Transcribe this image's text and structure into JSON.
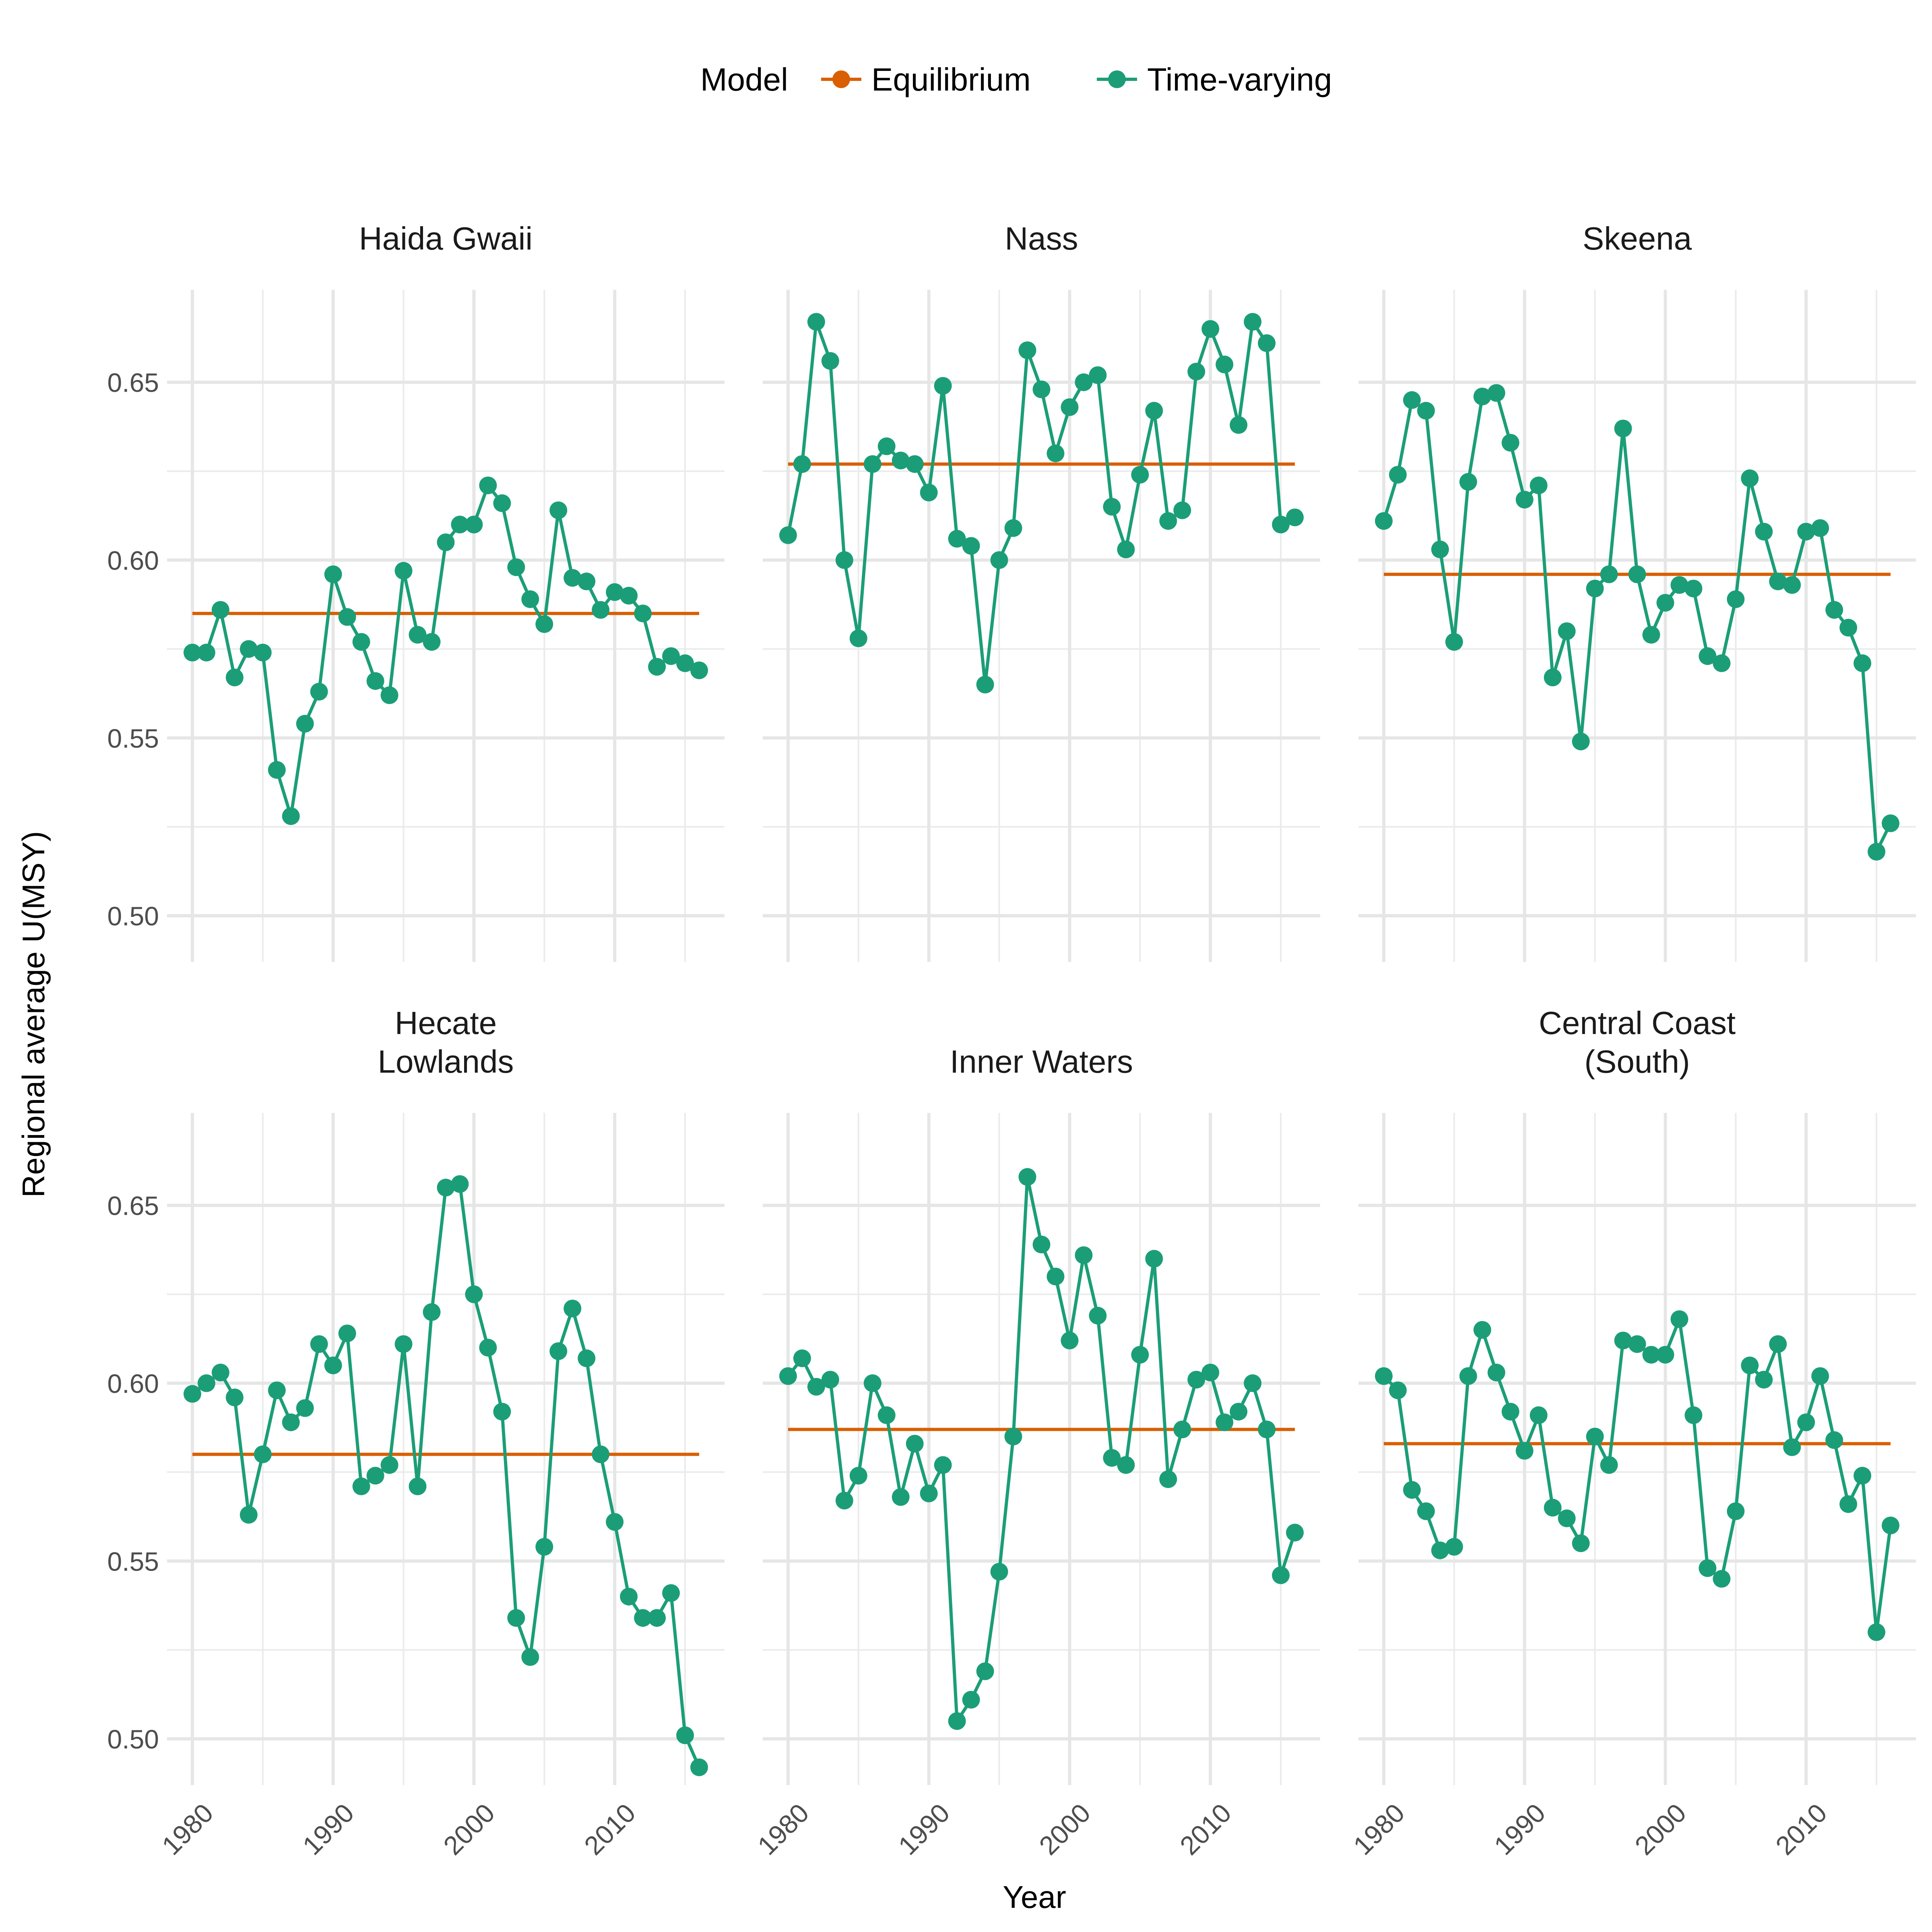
{
  "chart_data": {
    "type": "line",
    "xlabel": "Year",
    "ylabel": "Regional average U(MSY)",
    "ylim": [
      0.487,
      0.676
    ],
    "xlim": [
      1978.2,
      2017.8
    ],
    "x_ticks": [
      1980,
      1990,
      2000,
      2010
    ],
    "x_tick_labels": [
      "1980",
      "1990",
      "2000",
      "2010"
    ],
    "y_ticks": [
      0.5,
      0.55,
      0.6,
      0.65
    ],
    "y_tick_labels": [
      "0.50",
      "0.55",
      "0.60",
      "0.65"
    ],
    "grid": true,
    "legend": {
      "placement": "top",
      "title": "Model",
      "entries": [
        {
          "name": "Equilibrium",
          "color": "#D95F02"
        },
        {
          "name": "Time-varying",
          "color": "#1B9E77"
        }
      ]
    },
    "years": [
      1980,
      1981,
      1982,
      1983,
      1984,
      1985,
      1986,
      1987,
      1988,
      1989,
      1990,
      1991,
      1992,
      1993,
      1994,
      1995,
      1996,
      1997,
      1998,
      1999,
      2000,
      2001,
      2002,
      2003,
      2004,
      2005,
      2006,
      2007,
      2008,
      2009,
      2010,
      2011,
      2012,
      2013,
      2014,
      2015,
      2016
    ],
    "panels": [
      {
        "title_lines": [
          "Haida Gwaii"
        ],
        "equilibrium": 0.585,
        "time_varying": [
          0.574,
          0.574,
          0.586,
          0.567,
          0.575,
          0.574,
          0.541,
          0.528,
          0.554,
          0.563,
          0.596,
          0.584,
          0.577,
          0.566,
          0.562,
          0.597,
          0.579,
          0.577,
          0.605,
          0.61,
          0.61,
          0.621,
          0.616,
          0.598,
          0.589,
          0.582,
          0.614,
          0.595,
          0.594,
          0.586,
          0.591,
          0.59,
          0.585,
          0.57,
          0.573,
          0.571,
          0.569
        ]
      },
      {
        "title_lines": [
          "Nass"
        ],
        "equilibrium": 0.627,
        "time_varying": [
          0.607,
          0.627,
          0.667,
          0.656,
          0.6,
          0.578,
          0.627,
          0.632,
          0.628,
          0.627,
          0.619,
          0.649,
          0.606,
          0.604,
          0.565,
          0.6,
          0.609,
          0.659,
          0.648,
          0.63,
          0.643,
          0.65,
          0.652,
          0.615,
          0.603,
          0.624,
          0.642,
          0.611,
          0.614,
          0.653,
          0.665,
          0.655,
          0.638,
          0.667,
          0.661,
          0.61,
          0.612
        ]
      },
      {
        "title_lines": [
          "Skeena"
        ],
        "equilibrium": 0.596,
        "time_varying": [
          0.611,
          0.624,
          0.645,
          0.642,
          0.603,
          0.577,
          0.622,
          0.646,
          0.647,
          0.633,
          0.617,
          0.621,
          0.567,
          0.58,
          0.549,
          0.592,
          0.596,
          0.637,
          0.596,
          0.579,
          0.588,
          0.593,
          0.592,
          0.573,
          0.571,
          0.589,
          0.623,
          0.608,
          0.594,
          0.593,
          0.608,
          0.609,
          0.586,
          0.581,
          0.571,
          0.518,
          0.526
        ]
      },
      {
        "title_lines": [
          "Hecate",
          "Lowlands"
        ],
        "equilibrium": 0.58,
        "time_varying": [
          0.597,
          0.6,
          0.603,
          0.596,
          0.563,
          0.58,
          0.598,
          0.589,
          0.593,
          0.611,
          0.605,
          0.614,
          0.571,
          0.574,
          0.577,
          0.611,
          0.571,
          0.62,
          0.655,
          0.656,
          0.625,
          0.61,
          0.592,
          0.534,
          0.523,
          0.554,
          0.609,
          0.621,
          0.607,
          0.58,
          0.561,
          0.54,
          0.534,
          0.534,
          0.541,
          0.501,
          0.492
        ]
      },
      {
        "title_lines": [
          "Inner Waters"
        ],
        "equilibrium": 0.587,
        "time_varying": [
          0.602,
          0.607,
          0.599,
          0.601,
          0.567,
          0.574,
          0.6,
          0.591,
          0.568,
          0.583,
          0.569,
          0.577,
          0.505,
          0.511,
          0.519,
          0.547,
          0.585,
          0.658,
          0.639,
          0.63,
          0.612,
          0.636,
          0.619,
          0.579,
          0.577,
          0.608,
          0.635,
          0.573,
          0.587,
          0.601,
          0.603,
          0.589,
          0.592,
          0.6,
          0.587,
          0.546,
          0.558
        ]
      },
      {
        "title_lines": [
          "Central Coast",
          "(South)"
        ],
        "equilibrium": 0.583,
        "time_varying": [
          0.602,
          0.598,
          0.57,
          0.564,
          0.553,
          0.554,
          0.602,
          0.615,
          0.603,
          0.592,
          0.581,
          0.591,
          0.565,
          0.562,
          0.555,
          0.585,
          0.577,
          0.612,
          0.611,
          0.608,
          0.608,
          0.618,
          0.591,
          0.548,
          0.545,
          0.564,
          0.605,
          0.601,
          0.611,
          0.582,
          0.589,
          0.602,
          0.584,
          0.566,
          0.574,
          0.53,
          0.56
        ]
      }
    ]
  }
}
